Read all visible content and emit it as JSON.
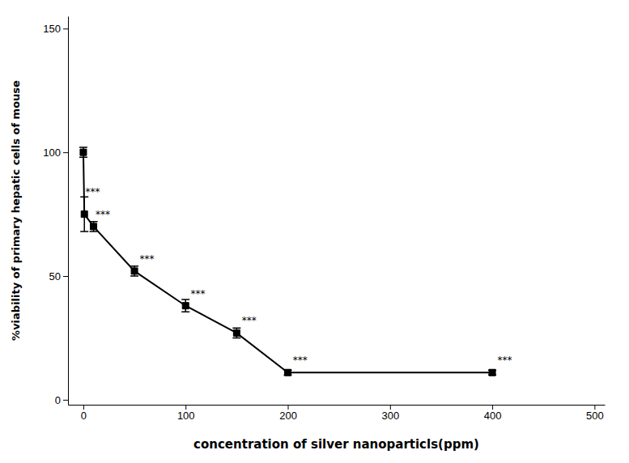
{
  "chart_data": {
    "type": "line",
    "x": [
      0,
      1,
      10,
      50,
      100,
      150,
      200,
      400
    ],
    "values": [
      100,
      75,
      70,
      52,
      38,
      27,
      11,
      11
    ],
    "yerr": [
      2,
      7,
      2,
      2,
      2.5,
      2,
      1,
      1
    ],
    "color": "#000000",
    "marker": "square",
    "xlabel": "concentration of silver nanoparticls(ppm)",
    "ylabel": "%viability of primary hepatic cells of mouse",
    "xlim": [
      -15,
      510
    ],
    "ylim": [
      -2,
      155
    ],
    "xticks": [
      0,
      100,
      200,
      300,
      400,
      500
    ],
    "yticks": [
      0,
      50,
      100,
      150
    ],
    "annotations": [
      {
        "text": "***",
        "x": 2,
        "y": 84
      },
      {
        "text": "***",
        "x": 12,
        "y": 75
      },
      {
        "text": "***",
        "x": 55,
        "y": 57
      },
      {
        "text": "***",
        "x": 105,
        "y": 43
      },
      {
        "text": "***",
        "x": 155,
        "y": 32
      },
      {
        "text": "***",
        "x": 205,
        "y": 16
      },
      {
        "text": "***",
        "x": 405,
        "y": 16
      }
    ]
  }
}
